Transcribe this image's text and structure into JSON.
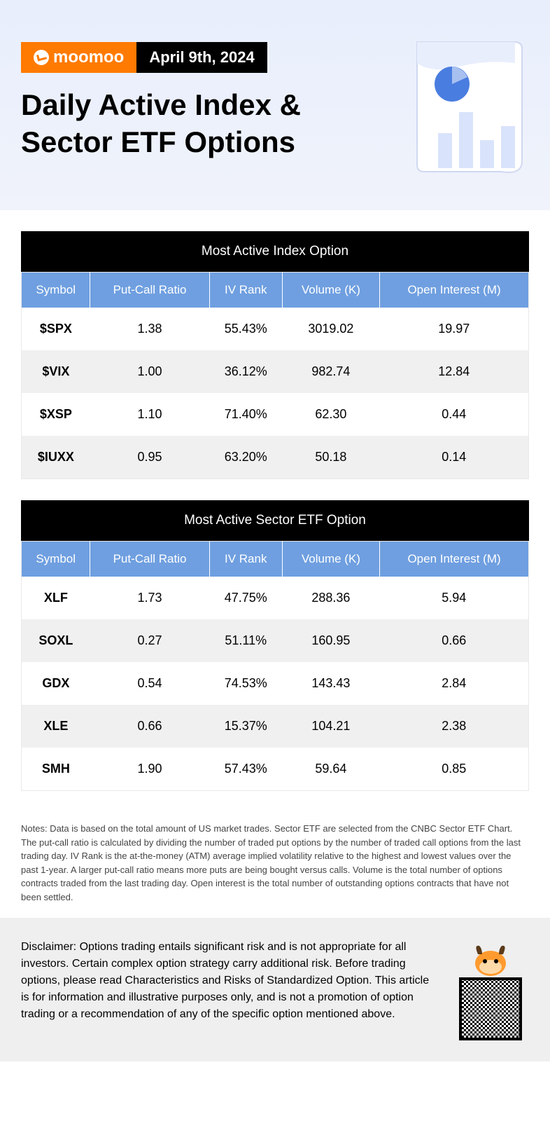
{
  "brand": {
    "name": "moomoo",
    "logo_bg": "#ff7a00",
    "logo_fg": "#ffffff"
  },
  "date": "April 9th, 2024",
  "title": "Daily Active Index & Sector ETF Options",
  "colors": {
    "header_bg_top": "#e8eefc",
    "header_bg_bottom": "#f0f3fb",
    "table_caption_bg": "#000000",
    "table_caption_fg": "#ffffff",
    "table_header_bg": "#6f9fe0",
    "table_header_fg": "#ffffff",
    "row_odd_bg": "#ffffff",
    "row_even_bg": "#f0f0f0",
    "disclaimer_bg": "#efefef",
    "illustration_paper": "#ffffff",
    "illustration_pie": "#4a7de0",
    "illustration_bar": "#d9e3fb",
    "mascot_main": "#ff9a2e"
  },
  "typography": {
    "title_fontsize": 42,
    "caption_fontsize": 19,
    "th_fontsize": 17,
    "td_fontsize": 18,
    "notes_fontsize": 13,
    "disclaimer_fontsize": 16
  },
  "columns": [
    "Symbol",
    "Put-Call Ratio",
    "IV Rank",
    "Volume (K)",
    "Open Interest (M)"
  ],
  "index_table": {
    "caption": "Most Active Index Option",
    "rows": [
      {
        "symbol": "$SPX",
        "pcr": "1.38",
        "iv": "55.43%",
        "vol": "3019.02",
        "oi": "19.97"
      },
      {
        "symbol": "$VIX",
        "pcr": "1.00",
        "iv": "36.12%",
        "vol": "982.74",
        "oi": "12.84"
      },
      {
        "symbol": "$XSP",
        "pcr": "1.10",
        "iv": "71.40%",
        "vol": "62.30",
        "oi": "0.44"
      },
      {
        "symbol": "$IUXX",
        "pcr": "0.95",
        "iv": "63.20%",
        "vol": "50.18",
        "oi": "0.14"
      }
    ]
  },
  "sector_table": {
    "caption": "Most Active Sector ETF Option",
    "rows": [
      {
        "symbol": "XLF",
        "pcr": "1.73",
        "iv": "47.75%",
        "vol": "288.36",
        "oi": "5.94"
      },
      {
        "symbol": "SOXL",
        "pcr": "0.27",
        "iv": "51.11%",
        "vol": "160.95",
        "oi": "0.66"
      },
      {
        "symbol": "GDX",
        "pcr": "0.54",
        "iv": "74.53%",
        "vol": "143.43",
        "oi": "2.84"
      },
      {
        "symbol": "XLE",
        "pcr": "0.66",
        "iv": "15.37%",
        "vol": "104.21",
        "oi": "2.38"
      },
      {
        "symbol": "SMH",
        "pcr": "1.90",
        "iv": "57.43%",
        "vol": "59.64",
        "oi": "0.85"
      }
    ]
  },
  "notes": "Notes: Data is based on the total amount of US market trades. Sector ETF are selected from the CNBC Sector ETF Chart. The put-call ratio is calculated by dividing the number of traded put options by the number of traded call options from the last trading day. IV Rank is the at-the-money (ATM) average implied volatility relative to the highest and lowest values over the past 1-year. A larger put-call ratio means more puts are being bought versus calls. Volume is the total number of options contracts traded from the last trading day. Open interest is the total number of outstanding options contracts that have not been settled.",
  "disclaimer": "Disclaimer: Options trading entails significant risk and is not appropriate for all investors. Certain complex option strategy carry additional risk. Before trading options, please read Characteristics and Risks of Standardized Option. This article is for information and illustrative purposes only, and is not a promotion of option trading or a recommendation of any of the specific option mentioned above."
}
